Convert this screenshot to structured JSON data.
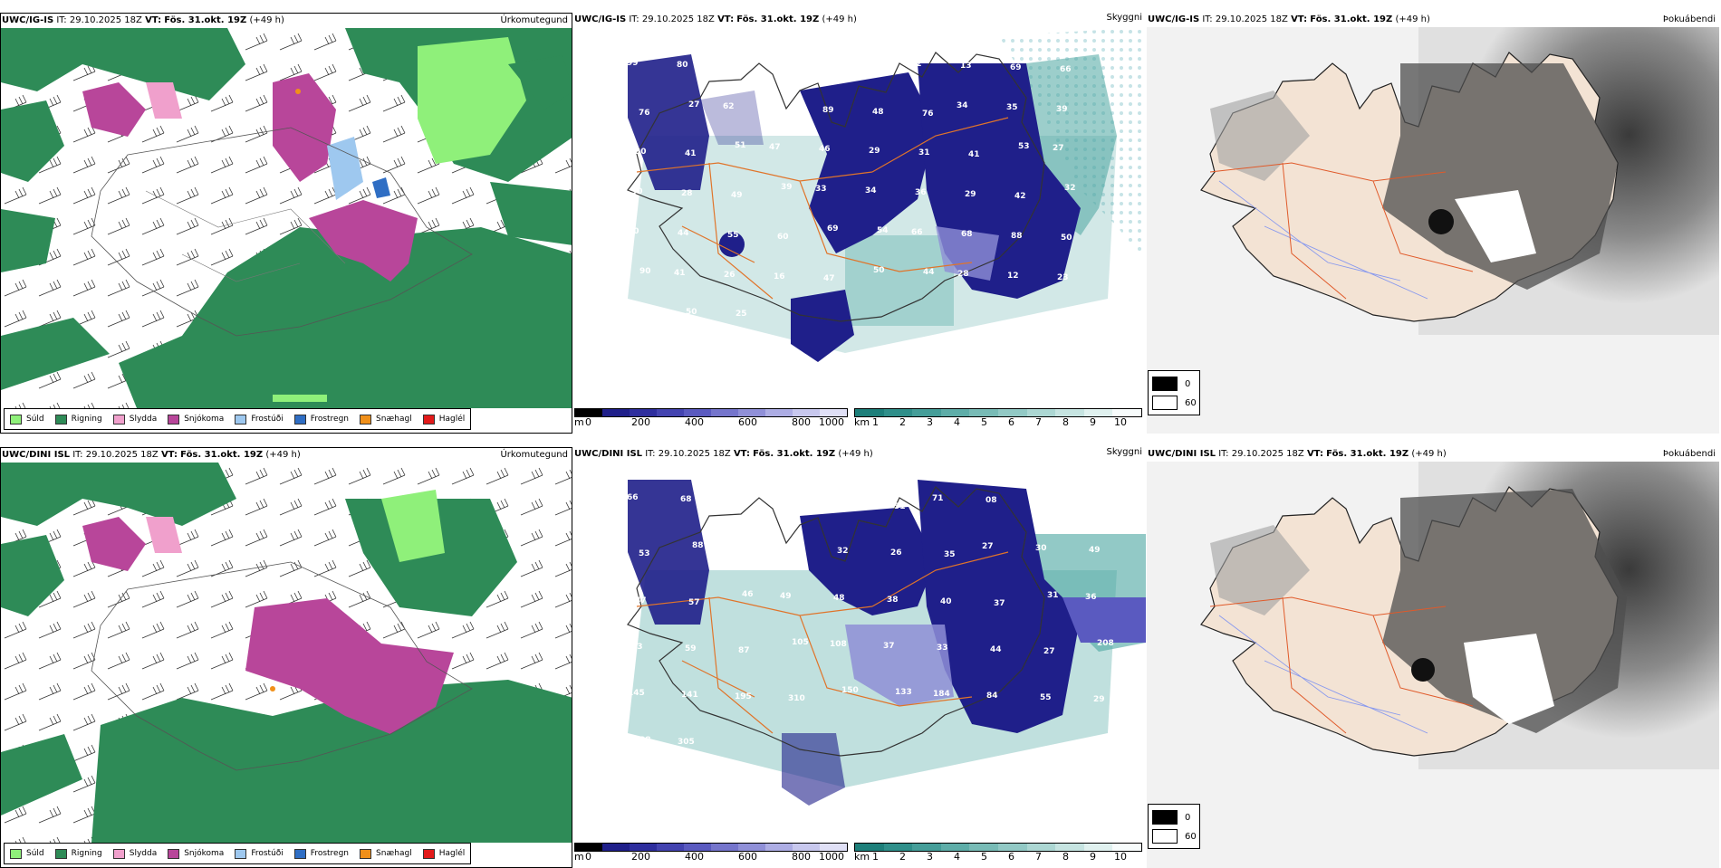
{
  "rows": [
    {
      "model": "UWC/IG-IS",
      "it_label": "IT:",
      "it_value": "29.10.2025 18Z",
      "vt_label": "VT:",
      "vt_value": "Fös. 31.okt. 19Z",
      "lead": "(+49 h)",
      "snow_labels": [
        "99",
        "80",
        "93",
        "71",
        "68",
        "65",
        "22",
        "13",
        "69",
        "66",
        "76",
        "27",
        "62",
        "48",
        "89",
        "48",
        "76",
        "34",
        "35",
        "39",
        "30",
        "41",
        "51",
        "47",
        "46",
        "29",
        "31",
        "41",
        "53",
        "27",
        "30",
        "28",
        "49",
        "39",
        "33",
        "34",
        "36",
        "29",
        "42",
        "32",
        "50",
        "44",
        "55",
        "60",
        "69",
        "54",
        "66",
        "68",
        "88",
        "50",
        "90",
        "41",
        "26",
        "16",
        "47",
        "50",
        "44",
        "28",
        "12",
        "23",
        "29",
        "50",
        "25"
      ]
    },
    {
      "model": "UWC/DINI ISL",
      "it_label": "IT:",
      "it_value": "29.10.2025 18Z",
      "vt_label": "VT:",
      "vt_value": "Fös. 31.okt. 19Z",
      "lead": "(+49 h)",
      "snow_labels": [
        "66",
        "68",
        "56",
        "85",
        "80",
        "51",
        "71",
        "08",
        "59",
        "50",
        "53",
        "88",
        "65",
        "33",
        "32",
        "26",
        "35",
        "27",
        "30",
        "49",
        "47",
        "57",
        "46",
        "49",
        "48",
        "38",
        "40",
        "37",
        "31",
        "36",
        "33",
        "59",
        "87",
        "105",
        "108",
        "37",
        "33",
        "44",
        "27",
        "208",
        "145",
        "141",
        "195",
        "310",
        "150",
        "133",
        "184",
        "84",
        "55",
        "29",
        "38",
        "305"
      ]
    }
  ],
  "panel_titles": {
    "precip": "Úrkomutegund",
    "visibility": "Skyggni",
    "cloud": "Þokuábendi"
  },
  "precip_legend": [
    {
      "label": "Súld",
      "color": "#8ff07a"
    },
    {
      "label": "Rigning",
      "color": "#2e8b57"
    },
    {
      "label": "Slydda",
      "color": "#f0a0cc"
    },
    {
      "label": "Snjókoma",
      "color": "#b8469a"
    },
    {
      "label": "Frostúði",
      "color": "#9ec8ef"
    },
    {
      "label": "Frostregn",
      "color": "#2f6ec4"
    },
    {
      "label": "Snæhagl",
      "color": "#f0901a"
    },
    {
      "label": "Haglél",
      "color": "#e21a1a"
    }
  ],
  "snow_scale": {
    "unit": "m",
    "ticks": [
      "0",
      "200",
      "400",
      "600",
      "800",
      "1000"
    ]
  },
  "vis_scale": {
    "unit": "km",
    "ticks": [
      "1",
      "2",
      "3",
      "4",
      "5",
      "6",
      "7",
      "8",
      "9",
      "10"
    ]
  },
  "cloud_key": {
    "dark": "0",
    "light": "60"
  },
  "colors": {
    "rain": "#2e8b57",
    "drizzle": "#8ff07a",
    "snow": "#b8469a",
    "sleet": "#f0a0cc",
    "snowcover": "#1f1f8a",
    "teal": "#4aa5a0",
    "land": "#f3e3d4",
    "roads": "#e0742a"
  }
}
